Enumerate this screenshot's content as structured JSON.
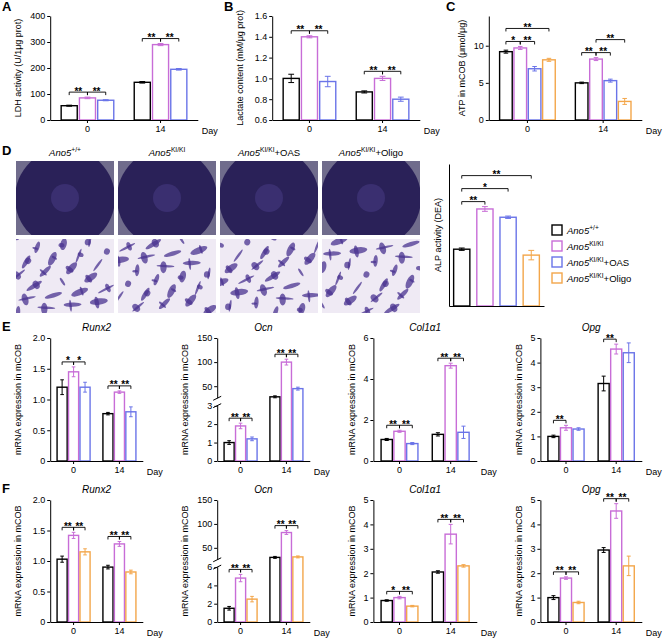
{
  "chart_data": [
    {
      "panel": "A",
      "type": "bar",
      "y_label": "LDH activity (U/1μg prot)",
      "x_label": "Day",
      "categories": [
        "0",
        "14"
      ],
      "ylim": [
        0,
        400
      ],
      "yticks": [
        0,
        100,
        200,
        300,
        400
      ],
      "series": [
        {
          "color": "#000000",
          "values": [
            55,
            145
          ],
          "errors": [
            2,
            3
          ]
        },
        {
          "color": "#c86dd7",
          "values": [
            85,
            290
          ],
          "errors": [
            3,
            4
          ]
        },
        {
          "color": "#6a74e8",
          "values": [
            76,
            195
          ],
          "errors": [
            2,
            3
          ]
        }
      ],
      "annotations": [
        {
          "category": 0,
          "from": 0,
          "to": 1,
          "label": "**"
        },
        {
          "category": 0,
          "from": 1,
          "to": 2,
          "label": "**"
        },
        {
          "category": 1,
          "from": 0,
          "to": 1,
          "label": "**"
        },
        {
          "category": 1,
          "from": 1,
          "to": 2,
          "label": "**"
        }
      ]
    },
    {
      "panel": "B",
      "type": "bar",
      "y_label": "Lactate content (mM/μg prot)",
      "x_label": "Day",
      "categories": [
        "0",
        "14"
      ],
      "ylim": [
        0.6,
        1.6
      ],
      "yticks": [
        0.6,
        0.8,
        {
          "value": 1,
          "label": "1.0"
        },
        1.2,
        1.4,
        1.6
      ],
      "series": [
        {
          "color": "#000000",
          "values": [
            1.0,
            0.87
          ],
          "errors": [
            0.04,
            0.01
          ]
        },
        {
          "color": "#c86dd7",
          "values": [
            1.4,
            1.0
          ],
          "errors": [
            0.01,
            0.02
          ]
        },
        {
          "color": "#6a74e8",
          "values": [
            0.97,
            0.8
          ],
          "errors": [
            0.05,
            0.02
          ]
        }
      ],
      "annotations": [
        {
          "category": 0,
          "from": 0,
          "to": 1,
          "label": "**"
        },
        {
          "category": 0,
          "from": 1,
          "to": 2,
          "label": "**"
        },
        {
          "category": 1,
          "from": 0,
          "to": 1,
          "label": "**"
        },
        {
          "category": 1,
          "from": 1,
          "to": 2,
          "label": "**"
        }
      ]
    },
    {
      "panel": "C",
      "type": "bar",
      "y_label": "ATP in mCOB (μmol/μg)",
      "x_label": "Day",
      "categories": [
        "0",
        "14"
      ],
      "ylim": [
        0,
        14
      ],
      "yticks": [
        0,
        5,
        10
      ],
      "series": [
        {
          "color": "#000000",
          "values": [
            9.2,
            5.0
          ],
          "errors": [
            0.2,
            0.1
          ]
        },
        {
          "color": "#c86dd7",
          "values": [
            9.7,
            8.2
          ],
          "errors": [
            0.2,
            0.2
          ]
        },
        {
          "color": "#6a74e8",
          "values": [
            6.9,
            5.3
          ],
          "errors": [
            0.3,
            0.2
          ]
        },
        {
          "color": "#f3a64a",
          "values": [
            8.1,
            2.5
          ],
          "errors": [
            0.2,
            0.4
          ]
        }
      ],
      "annotations": [
        {
          "category": 0,
          "from": 0,
          "to": 1,
          "label": "*"
        },
        {
          "category": 0,
          "from": 1,
          "to": 2,
          "label": "**"
        },
        {
          "category": 0,
          "from": 0,
          "to": 3,
          "label": "**"
        },
        {
          "category": 1,
          "from": 0,
          "to": 1,
          "label": "**"
        },
        {
          "category": 1,
          "from": 1,
          "to": 2,
          "label": "**"
        },
        {
          "category": 1,
          "from": 1,
          "to": 3,
          "label": "**"
        }
      ]
    },
    {
      "panel": "D",
      "type": "bar",
      "y_label": "ALP activity (DEA)",
      "categories": [
        "Ano5+/+",
        "Ano5KI/KI",
        "Ano5KI/KI+OAS",
        "Ano5KI/KI+Oligo"
      ],
      "values": [
        1.98,
        2.32,
        2.25,
        1.93
      ],
      "errors": [
        0.01,
        0.02,
        0.01,
        0.04
      ],
      "colors": [
        "#000000",
        "#c86dd7",
        "#6a74e8",
        "#f3a64a"
      ],
      "ylim": [
        1.5,
        2.7
      ],
      "tick_labels": false,
      "legend": "right",
      "annotations": [
        {
          "from": 0,
          "to": 1,
          "label": "**"
        },
        {
          "from": 0,
          "to": 2,
          "label": "*"
        },
        {
          "from": 0,
          "to": 3,
          "label": "**"
        }
      ]
    },
    {
      "panel": "E",
      "type": "bar",
      "title": "Runx2",
      "y_label": "mRNA expression in mCOB",
      "x_label": "Day",
      "categories": [
        "0",
        "14"
      ],
      "ylim": [
        0,
        2
      ],
      "yticks": [
        0,
        0.5,
        {
          "value": 1,
          "label": "1.0"
        },
        1.5,
        {
          "value": 2,
          "label": "2.0"
        }
      ],
      "series": [
        {
          "color": "#000000",
          "values": [
            1.2,
            0.77
          ],
          "errors": [
            0.12,
            0.02
          ]
        },
        {
          "color": "#c86dd7",
          "values": [
            1.45,
            1.12
          ],
          "errors": [
            0.08,
            0.02
          ]
        },
        {
          "color": "#6a74e8",
          "values": [
            1.2,
            0.8
          ],
          "errors": [
            0.08,
            0.08
          ]
        }
      ],
      "annotations": [
        {
          "category": 0,
          "from": 0,
          "to": 1,
          "label": "*"
        },
        {
          "category": 0,
          "from": 1,
          "to": 2,
          "label": "*"
        },
        {
          "category": 1,
          "from": 0,
          "to": 1,
          "label": "**"
        },
        {
          "category": 1,
          "from": 1,
          "to": 2,
          "label": "**"
        }
      ]
    },
    {
      "type": "bar",
      "title": "Ocn",
      "y_label": "mRNA expression in mCOB",
      "x_label": "Day",
      "categories": [
        "0",
        "14"
      ],
      "ylim": [
        0,
        150
      ],
      "axis_break": [
        3,
        25
      ],
      "yticks": [
        0,
        1,
        2,
        3,
        50,
        100,
        150
      ],
      "series": [
        {
          "color": "#000000",
          "values": [
            1.0,
            28
          ],
          "errors": [
            0.1,
            2
          ]
        },
        {
          "color": "#c86dd7",
          "values": [
            1.9,
            100
          ],
          "errors": [
            0.15,
            6
          ]
        },
        {
          "color": "#6a74e8",
          "values": [
            1.2,
            45
          ],
          "errors": [
            0.1,
            3
          ]
        }
      ],
      "annotations": [
        {
          "category": 0,
          "from": 0,
          "to": 1,
          "label": "**"
        },
        {
          "category": 0,
          "from": 1,
          "to": 2,
          "label": "**"
        },
        {
          "category": 1,
          "from": 0,
          "to": 1,
          "label": "**"
        },
        {
          "category": 1,
          "from": 1,
          "to": 2,
          "label": "**"
        }
      ]
    },
    {
      "type": "bar",
      "title": "Col1α1",
      "y_label": "mRNA expression in mCOB",
      "x_label": "Day",
      "categories": [
        "0",
        "14"
      ],
      "ylim": [
        0,
        6
      ],
      "yticks": [
        0,
        2,
        4,
        6
      ],
      "series": [
        {
          "color": "#000000",
          "values": [
            1.05,
            1.3
          ],
          "errors": [
            0.05,
            0.08
          ]
        },
        {
          "color": "#c86dd7",
          "values": [
            1.45,
            4.65
          ],
          "errors": [
            0.05,
            0.12
          ]
        },
        {
          "color": "#6a74e8",
          "values": [
            0.85,
            1.4
          ],
          "errors": [
            0.05,
            0.3
          ]
        }
      ],
      "annotations": [
        {
          "category": 0,
          "from": 0,
          "to": 1,
          "label": "**"
        },
        {
          "category": 0,
          "from": 1,
          "to": 2,
          "label": "**"
        },
        {
          "category": 1,
          "from": 0,
          "to": 1,
          "label": "**"
        },
        {
          "category": 1,
          "from": 1,
          "to": 2,
          "label": "**"
        }
      ]
    },
    {
      "type": "bar",
      "title": "Opg",
      "y_label": "mRNA expression in mCOB",
      "x_label": "Day",
      "categories": [
        "0",
        "14"
      ],
      "ylim": [
        0,
        5
      ],
      "yticks": [
        0,
        1,
        2,
        3,
        4,
        5
      ],
      "series": [
        {
          "color": "#000000",
          "values": [
            1.0,
            3.15
          ],
          "errors": [
            0.05,
            0.3
          ]
        },
        {
          "color": "#c86dd7",
          "values": [
            1.35,
            4.55
          ],
          "errors": [
            0.1,
            0.2
          ]
        },
        {
          "color": "#6a74e8",
          "values": [
            1.3,
            4.4
          ],
          "errors": [
            0.05,
            0.4
          ]
        }
      ],
      "annotations": [
        {
          "category": 0,
          "from": 0,
          "to": 1,
          "label": "**"
        },
        {
          "category": 1,
          "from": 0,
          "to": 1,
          "label": "**"
        }
      ]
    },
    {
      "panel": "F",
      "type": "bar",
      "title": "Runx2",
      "y_label": "mRNA expression in mCOB",
      "x_label": "Day",
      "categories": [
        "0",
        "14"
      ],
      "ylim": [
        0,
        2
      ],
      "yticks": [
        0,
        0.5,
        {
          "value": 1,
          "label": "1.0"
        },
        1.5,
        {
          "value": 2,
          "label": "2.0"
        }
      ],
      "series": [
        {
          "color": "#000000",
          "values": [
            1.03,
            0.9
          ],
          "errors": [
            0.05,
            0.03
          ]
        },
        {
          "color": "#c86dd7",
          "values": [
            1.42,
            1.28
          ],
          "errors": [
            0.05,
            0.04
          ]
        },
        {
          "color": "#f3a64a",
          "values": [
            1.15,
            0.82
          ],
          "errors": [
            0.05,
            0.03
          ]
        }
      ],
      "annotations": [
        {
          "category": 0,
          "from": 0,
          "to": 1,
          "label": "**"
        },
        {
          "category": 0,
          "from": 1,
          "to": 2,
          "label": "**"
        },
        {
          "category": 1,
          "from": 0,
          "to": 1,
          "label": "**"
        },
        {
          "category": 1,
          "from": 1,
          "to": 2,
          "label": "**"
        }
      ]
    },
    {
      "type": "bar",
      "title": "Ocn",
      "y_label": "mRNA expression in mCOB",
      "x_label": "Day",
      "categories": [
        "0",
        "14"
      ],
      "ylim": [
        0,
        150
      ],
      "axis_break": [
        6,
        25
      ],
      "yticks": [
        0,
        2,
        4,
        6,
        50,
        100,
        150
      ],
      "series": [
        {
          "color": "#000000",
          "values": [
            1.5,
            30
          ],
          "errors": [
            0.2,
            2
          ]
        },
        {
          "color": "#c86dd7",
          "values": [
            4.8,
            82
          ],
          "errors": [
            0.4,
            4
          ]
        },
        {
          "color": "#f3a64a",
          "values": [
            2.5,
            31
          ],
          "errors": [
            0.3,
            2
          ]
        }
      ],
      "annotations": [
        {
          "category": 0,
          "from": 0,
          "to": 1,
          "label": "**"
        },
        {
          "category": 0,
          "from": 1,
          "to": 2,
          "label": "**"
        },
        {
          "category": 1,
          "from": 0,
          "to": 1,
          "label": "**"
        },
        {
          "category": 1,
          "from": 1,
          "to": 2,
          "label": "**"
        }
      ]
    },
    {
      "type": "bar",
      "title": "Col1α1",
      "y_label": "mRNA expression in mCOB",
      "x_label": "Day",
      "categories": [
        "0",
        "14"
      ],
      "ylim": [
        0,
        5
      ],
      "yticks": [
        0,
        1,
        2,
        3,
        4,
        5
      ],
      "series": [
        {
          "color": "#000000",
          "values": [
            0.88,
            2.05
          ],
          "errors": [
            0.03,
            0.05
          ]
        },
        {
          "color": "#c86dd7",
          "values": [
            1.0,
            3.6
          ],
          "errors": [
            0.05,
            0.4
          ]
        },
        {
          "color": "#f3a64a",
          "values": [
            0.65,
            2.3
          ],
          "errors": [
            0.03,
            0.05
          ]
        }
      ],
      "annotations": [
        {
          "category": 0,
          "from": 0,
          "to": 1,
          "label": "*"
        },
        {
          "category": 0,
          "from": 1,
          "to": 2,
          "label": "**"
        },
        {
          "category": 1,
          "from": 0,
          "to": 1,
          "label": "**"
        },
        {
          "category": 1,
          "from": 1,
          "to": 2,
          "label": "**"
        }
      ]
    },
    {
      "type": "bar",
      "title": "Opg",
      "y_label": "mRNA expression in mCOB",
      "x_label": "Day",
      "categories": [
        "0",
        "14"
      ],
      "ylim": [
        0,
        5
      ],
      "yticks": [
        0,
        1,
        2,
        3,
        4,
        5
      ],
      "series": [
        {
          "color": "#000000",
          "values": [
            1.0,
            2.95
          ],
          "errors": [
            0.08,
            0.1
          ]
        },
        {
          "color": "#c86dd7",
          "values": [
            1.8,
            4.55
          ],
          "errors": [
            0.05,
            0.3
          ]
        },
        {
          "color": "#f3a64a",
          "values": [
            0.8,
            2.3
          ],
          "errors": [
            0.05,
            0.4
          ]
        }
      ],
      "annotations": [
        {
          "category": 0,
          "from": 0,
          "to": 1,
          "label": "**"
        },
        {
          "category": 0,
          "from": 1,
          "to": 2,
          "label": "**"
        },
        {
          "category": 1,
          "from": 0,
          "to": 1,
          "label": "**"
        },
        {
          "category": 1,
          "from": 1,
          "to": 2,
          "label": "**"
        }
      ]
    }
  ]
}
